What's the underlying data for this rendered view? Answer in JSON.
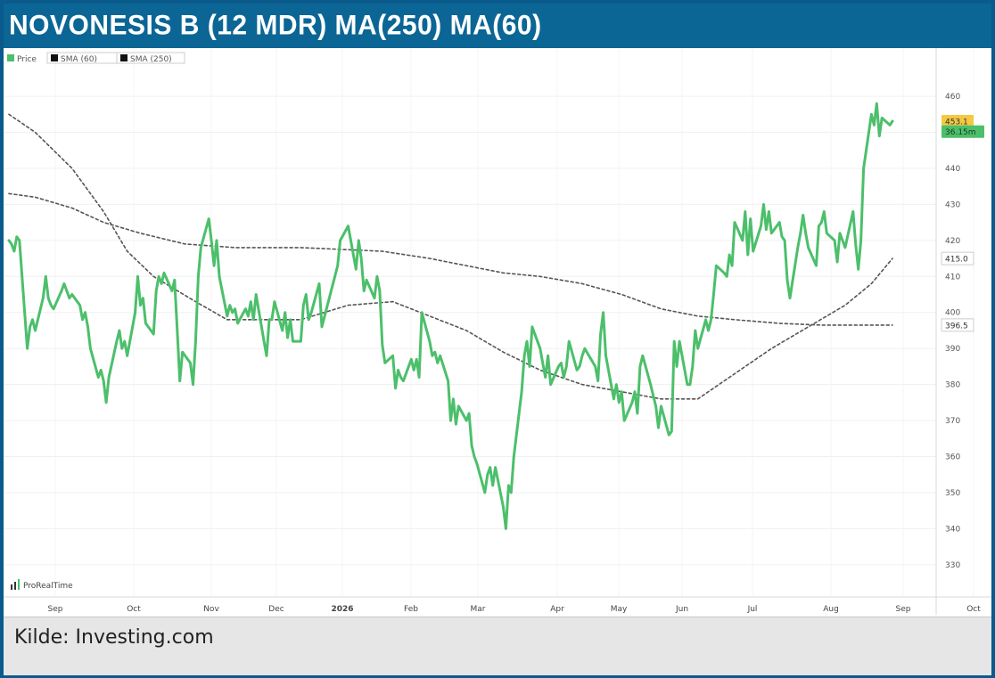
{
  "title": "NOVONESIS B (12 MDR) MA(250) MA(60)",
  "source": "Kilde: Investing.com",
  "watermark": "ProRealTime",
  "colors": {
    "header": "#0b6696",
    "frame": "#0b5a8c",
    "price_line": "#4cbf6b",
    "sma": "#555555",
    "price_tag": "#f5c842",
    "volume_tag": "#4cbf6b",
    "source_bg": "#e6e6e6"
  },
  "chart_data": {
    "type": "line",
    "legend": [
      {
        "label": "Price",
        "color": "#4cbf6b"
      },
      {
        "label": "SMA (60)",
        "color": "#111111"
      },
      {
        "label": "SMA (250)",
        "color": "#111111"
      }
    ],
    "legend_position": "top-left",
    "grid": true,
    "ylim": [
      326,
      462
    ],
    "y_ticks": [
      "460",
      "450",
      "440",
      "430",
      "420",
      "410",
      "400",
      "390",
      "380",
      "370",
      "360",
      "350",
      "340",
      "330"
    ],
    "x_ticks": [
      "Sep",
      "Oct",
      "Nov",
      "Dec",
      "2026",
      "Feb",
      "Mar",
      "Apr",
      "May",
      "Jun",
      "Jul",
      "Aug",
      "Sep",
      "Oct"
    ],
    "tags": [
      {
        "label": "453.1",
        "value": 453.1,
        "kind": "price"
      },
      {
        "label": "36.15m",
        "value": 450.2,
        "kind": "volume"
      },
      {
        "label": "415.0",
        "value": 415.0,
        "kind": "sma60"
      },
      {
        "label": "396.5",
        "value": 396.5,
        "kind": "sma250"
      }
    ],
    "series": [
      {
        "name": "Price",
        "points": [
          [
            "Aug 26",
            420
          ],
          [
            "Aug 27",
            419
          ],
          [
            "Aug 28",
            417
          ],
          [
            "Aug 29",
            421
          ],
          [
            "Aug 30",
            420
          ],
          [
            "Sep 2",
            390
          ],
          [
            "Sep 3",
            396
          ],
          [
            "Sep 4",
            398
          ],
          [
            "Sep 5",
            395
          ],
          [
            "Sep 8",
            404
          ],
          [
            "Sep 9",
            410
          ],
          [
            "Sep 10",
            404
          ],
          [
            "Sep 11",
            402
          ],
          [
            "Sep 12",
            401
          ],
          [
            "Sep 15",
            406
          ],
          [
            "Sep 16",
            408
          ],
          [
            "Sep 17",
            406
          ],
          [
            "Sep 18",
            404
          ],
          [
            "Sep 19",
            405
          ],
          [
            "Sep 22",
            402
          ],
          [
            "Sep 23",
            398
          ],
          [
            "Sep 24",
            400
          ],
          [
            "Sep 25",
            396
          ],
          [
            "Sep 26",
            390
          ],
          [
            "Sep 29",
            382
          ],
          [
            "Sep 30",
            384
          ],
          [
            "Oct 1",
            381
          ],
          [
            "Oct 2",
            375
          ],
          [
            "Oct 3",
            382
          ],
          [
            "Oct 6",
            392
          ],
          [
            "Oct 7",
            395
          ],
          [
            "Oct 8",
            390
          ],
          [
            "Oct 9",
            392
          ],
          [
            "Oct 10",
            388
          ],
          [
            "Oct 13",
            400
          ],
          [
            "Oct 14",
            410
          ],
          [
            "Oct 15",
            402
          ],
          [
            "Oct 16",
            404
          ],
          [
            "Oct 17",
            397
          ],
          [
            "Oct 20",
            394
          ],
          [
            "Oct 21",
            406
          ],
          [
            "Oct 22",
            410
          ],
          [
            "Oct 23",
            408
          ],
          [
            "Oct 24",
            411
          ],
          [
            "Oct 27",
            406
          ],
          [
            "Oct 28",
            409
          ],
          [
            "Oct 29",
            395
          ],
          [
            "Oct 30",
            381
          ],
          [
            "Oct 31",
            389
          ],
          [
            "Nov 3",
            386
          ],
          [
            "Nov 4",
            380
          ],
          [
            "Nov 5",
            392
          ],
          [
            "Nov 6",
            410
          ],
          [
            "Nov 7",
            418
          ],
          [
            "Nov 10",
            426
          ],
          [
            "Nov 11",
            420
          ],
          [
            "Nov 12",
            413
          ],
          [
            "Nov 13",
            420
          ],
          [
            "Nov 14",
            410
          ],
          [
            "Nov 17",
            399
          ],
          [
            "Nov 18",
            402
          ],
          [
            "Nov 19",
            400
          ],
          [
            "Nov 20",
            401
          ],
          [
            "Nov 21",
            397
          ],
          [
            "Nov 24",
            401
          ],
          [
            "Nov 25",
            399
          ],
          [
            "Nov 26",
            403
          ],
          [
            "Nov 27",
            398
          ],
          [
            "Nov 28",
            405
          ],
          [
            "Dec 1",
            392
          ],
          [
            "Dec 2",
            388
          ],
          [
            "Dec 3",
            398
          ],
          [
            "Dec 4",
            398
          ],
          [
            "Dec 5",
            403
          ],
          [
            "Dec 8",
            395
          ],
          [
            "Dec 9",
            400
          ],
          [
            "Dec 10",
            393
          ],
          [
            "Dec 11",
            398
          ],
          [
            "Dec 12",
            392
          ],
          [
            "Dec 15",
            392
          ],
          [
            "Dec 16",
            402
          ],
          [
            "Dec 17",
            405
          ],
          [
            "Dec 18",
            398
          ],
          [
            "Dec 19",
            400
          ],
          [
            "Dec 22",
            408
          ],
          [
            "Dec 23",
            396
          ],
          [
            "Dec 29",
            413
          ],
          [
            "Dec 30",
            420
          ],
          [
            "Jan 2",
            424
          ],
          [
            "Jan 5",
            412
          ],
          [
            "Jan 6",
            420
          ],
          [
            "Jan 7",
            415
          ],
          [
            "Jan 8",
            406
          ],
          [
            "Jan 9",
            409
          ],
          [
            "Jan 12",
            404
          ],
          [
            "Jan 13",
            410
          ],
          [
            "Jan 14",
            406
          ],
          [
            "Jan 15",
            391
          ],
          [
            "Jan 16",
            386
          ],
          [
            "Jan 19",
            388
          ],
          [
            "Jan 20",
            379
          ],
          [
            "Jan 21",
            384
          ],
          [
            "Jan 22",
            382
          ],
          [
            "Jan 23",
            381
          ],
          [
            "Jan 26",
            387
          ],
          [
            "Jan 27",
            384
          ],
          [
            "Jan 28",
            387
          ],
          [
            "Jan 29",
            382
          ],
          [
            "Jan 30",
            400
          ],
          [
            "Feb 2",
            392
          ],
          [
            "Feb 3",
            388
          ],
          [
            "Feb 4",
            389
          ],
          [
            "Feb 5",
            386
          ],
          [
            "Feb 6",
            388
          ],
          [
            "Feb 9",
            381
          ],
          [
            "Feb 10",
            370
          ],
          [
            "Feb 11",
            376
          ],
          [
            "Feb 12",
            369
          ],
          [
            "Feb 13",
            374
          ],
          [
            "Feb 16",
            370
          ],
          [
            "Feb 17",
            372
          ],
          [
            "Feb 18",
            363
          ],
          [
            "Feb 19",
            360
          ],
          [
            "Feb 20",
            358
          ],
          [
            "Feb 23",
            350
          ],
          [
            "Feb 24",
            355
          ],
          [
            "Feb 25",
            357
          ],
          [
            "Feb 26",
            352
          ],
          [
            "Feb 27",
            357
          ],
          [
            "Mar 2",
            346
          ],
          [
            "Mar 3",
            340
          ],
          [
            "Mar 4",
            352
          ],
          [
            "Mar 5",
            350
          ],
          [
            "Mar 6",
            360
          ],
          [
            "Mar 9",
            378
          ],
          [
            "Mar 10",
            388
          ],
          [
            "Mar 11",
            392
          ],
          [
            "Mar 12",
            385
          ],
          [
            "Mar 13",
            396
          ],
          [
            "Mar 16",
            390
          ],
          [
            "Mar 17",
            386
          ],
          [
            "Mar 18",
            382
          ],
          [
            "Mar 19",
            388
          ],
          [
            "Mar 20",
            380
          ],
          [
            "Mar 23",
            385
          ],
          [
            "Mar 24",
            386
          ],
          [
            "Mar 25",
            382
          ],
          [
            "Mar 26",
            385
          ],
          [
            "Mar 27",
            392
          ],
          [
            "Mar 30",
            384
          ],
          [
            "Mar 31",
            385
          ],
          [
            "Apr 1",
            388
          ],
          [
            "Apr 2",
            390
          ],
          [
            "Apr 6",
            385
          ],
          [
            "Apr 7",
            381
          ],
          [
            "Apr 8",
            394
          ],
          [
            "Apr 9",
            400
          ],
          [
            "Apr 10",
            388
          ],
          [
            "Apr 13",
            376
          ],
          [
            "Apr 14",
            380
          ],
          [
            "Apr 15",
            375
          ],
          [
            "Apr 16",
            378
          ],
          [
            "Apr 17",
            370
          ],
          [
            "Apr 20",
            375
          ],
          [
            "Apr 21",
            378
          ],
          [
            "Apr 22",
            372
          ],
          [
            "Apr 23",
            385
          ],
          [
            "Apr 24",
            388
          ],
          [
            "Apr 27",
            380
          ],
          [
            "Apr 28",
            377
          ],
          [
            "Apr 29",
            374
          ],
          [
            "Apr 30",
            368
          ],
          [
            "May 1",
            374
          ],
          [
            "May 4",
            366
          ],
          [
            "May 5",
            367
          ],
          [
            "May 6",
            392
          ],
          [
            "May 7",
            385
          ],
          [
            "May 8",
            392
          ],
          [
            "May 11",
            380
          ],
          [
            "May 12",
            380
          ],
          [
            "May 13",
            385
          ],
          [
            "May 14",
            395
          ],
          [
            "May 15",
            390
          ],
          [
            "May 18",
            398
          ],
          [
            "May 19",
            395
          ],
          [
            "May 20",
            398
          ],
          [
            "May 21",
            405
          ],
          [
            "May 22",
            413
          ],
          [
            "May 25",
            411
          ],
          [
            "May 26",
            410
          ],
          [
            "May 27",
            416
          ],
          [
            "May 28",
            413
          ],
          [
            "May 29",
            425
          ],
          [
            "Jun 1",
            420
          ],
          [
            "Jun 2",
            428
          ],
          [
            "Jun 3",
            416
          ],
          [
            "Jun 4",
            426
          ],
          [
            "Jun 5",
            417
          ],
          [
            "Jun 8",
            424
          ],
          [
            "Jun 9",
            430
          ],
          [
            "Jun 10",
            423
          ],
          [
            "Jun 11",
            428
          ],
          [
            "Jun 12",
            422
          ],
          [
            "Jun 15",
            425
          ],
          [
            "Jun 16",
            421
          ],
          [
            "Jun 17",
            420
          ],
          [
            "Jun 18",
            409
          ],
          [
            "Jun 19",
            404
          ],
          [
            "Jun 22",
            418
          ],
          [
            "Jun 23",
            422
          ],
          [
            "Jun 24",
            427
          ],
          [
            "Jun 25",
            422
          ],
          [
            "Jun 26",
            418
          ],
          [
            "Jun 29",
            413
          ],
          [
            "Jun 30",
            424
          ],
          [
            "Jul 1",
            425
          ],
          [
            "Jul 2",
            428
          ],
          [
            "Jul 3",
            422
          ],
          [
            "Jul 6",
            420
          ],
          [
            "Jul 7",
            414
          ],
          [
            "Jul 8",
            422
          ],
          [
            "Jul 9",
            420
          ],
          [
            "Jul 10",
            418
          ],
          [
            "Jul 13",
            428
          ],
          [
            "Jul 14",
            419
          ],
          [
            "Jul 15",
            412
          ],
          [
            "Jul 16",
            420
          ],
          [
            "Jul 17",
            440
          ],
          [
            "Jul 20",
            455
          ],
          [
            "Jul 21",
            452
          ],
          [
            "Jul 22",
            458
          ],
          [
            "Jul 23",
            449
          ],
          [
            "Jul 24",
            454
          ],
          [
            "Jul 27",
            452
          ],
          [
            "Jul 28",
            453.1
          ]
        ]
      },
      {
        "name": "SMA (60)",
        "points": [
          [
            "Aug 26",
            455
          ],
          [
            "Sep 5",
            450
          ],
          [
            "Sep 19",
            440
          ],
          [
            "Oct 1",
            428
          ],
          [
            "Oct 10",
            417
          ],
          [
            "Oct 20",
            410
          ],
          [
            "Nov 5",
            403
          ],
          [
            "Nov 17",
            398
          ],
          [
            "Dec 1",
            398
          ],
          [
            "Dec 15",
            398
          ],
          [
            "Jan 2",
            402
          ],
          [
            "Jan 19",
            403
          ],
          [
            "Feb 2",
            399
          ],
          [
            "Feb 16",
            395
          ],
          [
            "Mar 2",
            389
          ],
          [
            "Mar 16",
            384
          ],
          [
            "Apr 1",
            380
          ],
          [
            "Apr 16",
            378
          ],
          [
            "May 1",
            376
          ],
          [
            "May 15",
            376
          ],
          [
            "May 29",
            383
          ],
          [
            "Jun 12",
            390
          ],
          [
            "Jun 26",
            396
          ],
          [
            "Jul 10",
            402
          ],
          [
            "Jul 20",
            408
          ],
          [
            "Jul 28",
            415
          ]
        ]
      },
      {
        "name": "SMA (250)",
        "points": [
          [
            "Aug 26",
            433
          ],
          [
            "Sep 5",
            432
          ],
          [
            "Sep 19",
            429
          ],
          [
            "Oct 1",
            425
          ],
          [
            "Oct 15",
            422
          ],
          [
            "Nov 1",
            419
          ],
          [
            "Nov 20",
            418
          ],
          [
            "Dec 15",
            418
          ],
          [
            "Jan 15",
            417
          ],
          [
            "Feb 2",
            415
          ],
          [
            "Feb 16",
            413
          ],
          [
            "Mar 2",
            411
          ],
          [
            "Mar 16",
            410
          ],
          [
            "Apr 1",
            408
          ],
          [
            "Apr 16",
            405
          ],
          [
            "May 1",
            401
          ],
          [
            "May 15",
            399
          ],
          [
            "May 29",
            398
          ],
          [
            "Jun 15",
            397
          ],
          [
            "Jul 1",
            396.5
          ],
          [
            "Jul 15",
            396.5
          ],
          [
            "Jul 28",
            396.5
          ]
        ]
      }
    ]
  }
}
